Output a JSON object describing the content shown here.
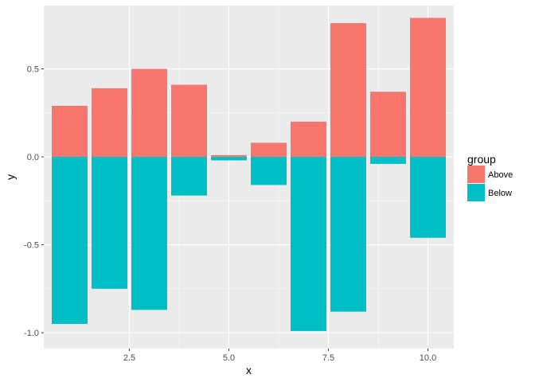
{
  "chart_data": {
    "type": "bar",
    "stacked": "diverging",
    "x": [
      1,
      2,
      3,
      4,
      5,
      6,
      7,
      8,
      9,
      10
    ],
    "series": [
      {
        "name": "Above",
        "color": "#F8766D",
        "values": [
          0.29,
          0.39,
          0.5,
          0.41,
          0.01,
          0.08,
          0.2,
          0.76,
          0.37,
          0.79
        ]
      },
      {
        "name": "Below",
        "color": "#00BFC4",
        "values": [
          -0.95,
          -0.75,
          -0.87,
          -0.22,
          -0.02,
          -0.16,
          -0.99,
          -0.88,
          -0.04,
          -0.46
        ]
      }
    ],
    "xlabel": "x",
    "ylabel": "y",
    "xlim": [
      0.35,
      10.65
    ],
    "ylim": [
      -1.09,
      0.86
    ],
    "xticks": [
      2.5,
      5.0,
      7.5,
      10.0
    ],
    "xtick_labels": [
      "2.5",
      "5.0",
      "7.5",
      "10.0"
    ],
    "yticks": [
      -1.0,
      -0.5,
      0.0,
      0.5
    ],
    "ytick_labels": [
      "-1.0",
      "-0.5",
      "0.0",
      "0.5"
    ],
    "grid": true,
    "panel_background": "#EBEBEB",
    "grid_color": "#FFFFFF",
    "legend": {
      "title": "group",
      "position": "right",
      "entries": [
        {
          "label": "Above",
          "color": "#F8766D"
        },
        {
          "label": "Below",
          "color": "#00BFC4"
        }
      ]
    }
  }
}
